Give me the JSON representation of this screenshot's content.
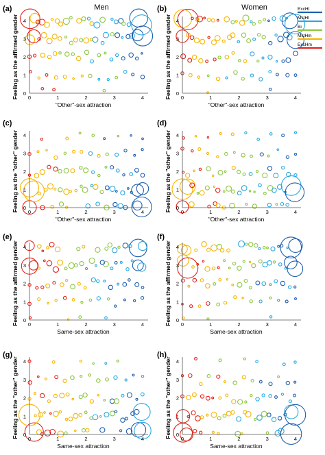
{
  "column_titles": [
    "Men",
    "Women"
  ],
  "legend": [
    {
      "label": "ExcHt",
      "color": "#1f5fae"
    },
    {
      "label": "MstHt",
      "color": "#29a9e0"
    },
    {
      "label": "Bi",
      "color": "#8dc63f"
    },
    {
      "label": "MstHm",
      "color": "#f7b500"
    },
    {
      "label": "ExcHm",
      "color": "#e2231a"
    }
  ],
  "chart_data": [
    {
      "type": "scatter",
      "panel": "(a)",
      "column": "Men",
      "xlabel": "\"Other\"-sex attraction",
      "ylabel": "Feeling as the affirmed gender",
      "xlim": [
        0,
        4
      ],
      "ylim": [
        0,
        4
      ],
      "x_ticks": [
        "0",
        "1",
        "2",
        "3",
        "4"
      ],
      "y_ticks": [
        "0",
        "1",
        "2",
        "3",
        "4"
      ],
      "layout": "high_y_spread_x"
    },
    {
      "type": "scatter",
      "panel": "(b)",
      "column": "Women",
      "xlabel": "\"Other\"-sex attraction",
      "ylabel": "Feeling as the affirmed gender",
      "xlim": [
        0,
        4
      ],
      "ylim": [
        0,
        4
      ],
      "x_ticks": [
        "0",
        "1",
        "2",
        "3",
        "4"
      ],
      "y_ticks": [
        "0",
        "1",
        "2",
        "3",
        "4"
      ],
      "layout": "high_y_spread_x"
    },
    {
      "type": "scatter",
      "panel": "(c)",
      "column": "Men",
      "xlabel": "\"Other\"-sex attraction",
      "ylabel": "Feeling as the \"other\" gender",
      "xlim": [
        0,
        4
      ],
      "ylim": [
        0,
        4
      ],
      "x_ticks": [
        "0",
        "1",
        "2",
        "3",
        "4"
      ],
      "y_ticks": [
        "0",
        "1",
        "2",
        "3",
        "4"
      ],
      "layout": "low_y_spread_x"
    },
    {
      "type": "scatter",
      "panel": "(d)",
      "column": "Women",
      "xlabel": "\"Other\"-sex attraction",
      "ylabel": "Feeling as the \"other\" gender",
      "xlim": [
        0,
        4
      ],
      "ylim": [
        0,
        4
      ],
      "x_ticks": [
        "0",
        "1",
        "2",
        "3",
        "4"
      ],
      "y_ticks": [
        "0",
        "1",
        "2",
        "3",
        "4"
      ],
      "layout": "low_y_spread_x"
    },
    {
      "type": "scatter",
      "panel": "(e)",
      "column": "Men",
      "xlabel": "Same-sex attraction",
      "ylabel": "Feeling as the affirmed gender",
      "xlim": [
        0,
        4
      ],
      "ylim": [
        0,
        4
      ],
      "x_ticks": [
        "0",
        "1",
        "2",
        "3",
        "4"
      ],
      "y_ticks": [
        "0",
        "1",
        "2",
        "3",
        "4"
      ],
      "layout": "high_y_spread_x"
    },
    {
      "type": "scatter",
      "panel": "(f)",
      "column": "Women",
      "xlabel": "Same-sex attraction",
      "ylabel": "Feeling as the affirmed gender",
      "xlim": [
        0,
        4
      ],
      "ylim": [
        0,
        4
      ],
      "x_ticks": [
        "0",
        "1",
        "2",
        "3",
        "4"
      ],
      "y_ticks": [
        "0",
        "1",
        "2",
        "3",
        "4"
      ],
      "layout": "high_y_spread_x"
    },
    {
      "type": "scatter",
      "panel": "(g)",
      "column": "Men",
      "xlabel": "Same-sex attraction",
      "ylabel": "Feeling as the \"other\" gender",
      "xlim": [
        0,
        4
      ],
      "ylim": [
        0,
        4
      ],
      "x_ticks": [
        "0",
        "1",
        "2",
        "3",
        "4"
      ],
      "y_ticks": [
        "0",
        "1",
        "2",
        "3",
        "4"
      ],
      "layout": "low_y_spread_x"
    },
    {
      "type": "scatter",
      "panel": "(h)",
      "column": "Women",
      "xlabel": "Same-sex attraction",
      "ylabel": "Feeling as the \"other\" gender",
      "xlim": [
        0,
        4
      ],
      "ylim": [
        0,
        4
      ],
      "x_ticks": [
        "0",
        "1",
        "2",
        "3",
        "4"
      ],
      "y_ticks": [
        "0",
        "1",
        "2",
        "3",
        "4"
      ],
      "layout": "low_y_spread_x"
    }
  ]
}
